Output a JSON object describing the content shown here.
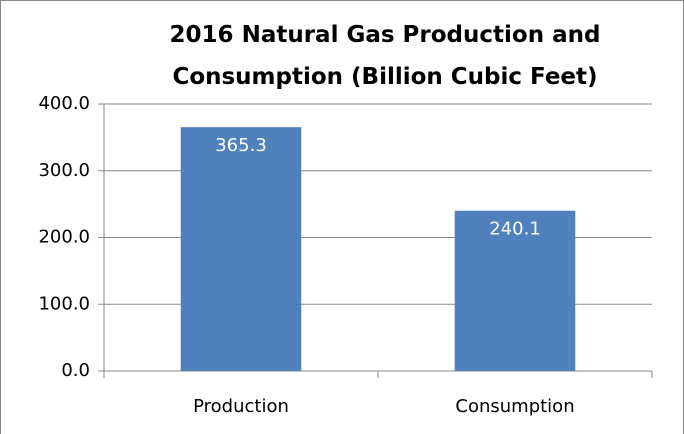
{
  "chart_data": {
    "type": "bar",
    "title": "2016 Natural Gas Production and Consumption (Billion Cubic Feet)",
    "categories": [
      "Production",
      "Consumption"
    ],
    "values": [
      365.3,
      240.1
    ],
    "color": "#4f81bd",
    "ylim": [
      0,
      400
    ],
    "yticks": [
      {
        "value": 0,
        "label": "0.0"
      },
      {
        "value": 100,
        "label": "100.0"
      },
      {
        "value": 200,
        "label": "200.0"
      },
      {
        "value": 300,
        "label": "300.0"
      },
      {
        "value": 400,
        "label": "400.0"
      }
    ],
    "grid": true
  }
}
